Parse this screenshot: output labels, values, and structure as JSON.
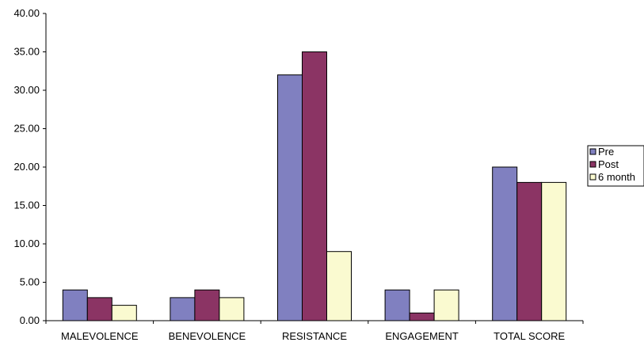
{
  "chart_data": {
    "type": "bar",
    "title": "",
    "xlabel": "",
    "ylabel": "",
    "ylim": [
      0,
      40
    ],
    "ytick_step": 5,
    "ytick_labels": [
      "0.00",
      "5.00",
      "10.00",
      "15.00",
      "20.00",
      "25.00",
      "30.00",
      "35.00",
      "40.00"
    ],
    "categories": [
      "MALEVOLENCE",
      "BENEVOLENCE",
      "RESISTANCE",
      "ENGAGEMENT",
      "TOTAL SCORE"
    ],
    "series": [
      {
        "name": "Pre",
        "color": "#8080c0",
        "values": [
          4,
          3,
          32,
          4,
          20
        ]
      },
      {
        "name": "Post",
        "color": "#8b3464",
        "values": [
          3,
          4,
          35,
          1,
          18
        ]
      },
      {
        "name": "6 month",
        "color": "#fafad0",
        "values": [
          2,
          3,
          9,
          4,
          18
        ]
      }
    ],
    "grid": false,
    "legend": "right"
  }
}
